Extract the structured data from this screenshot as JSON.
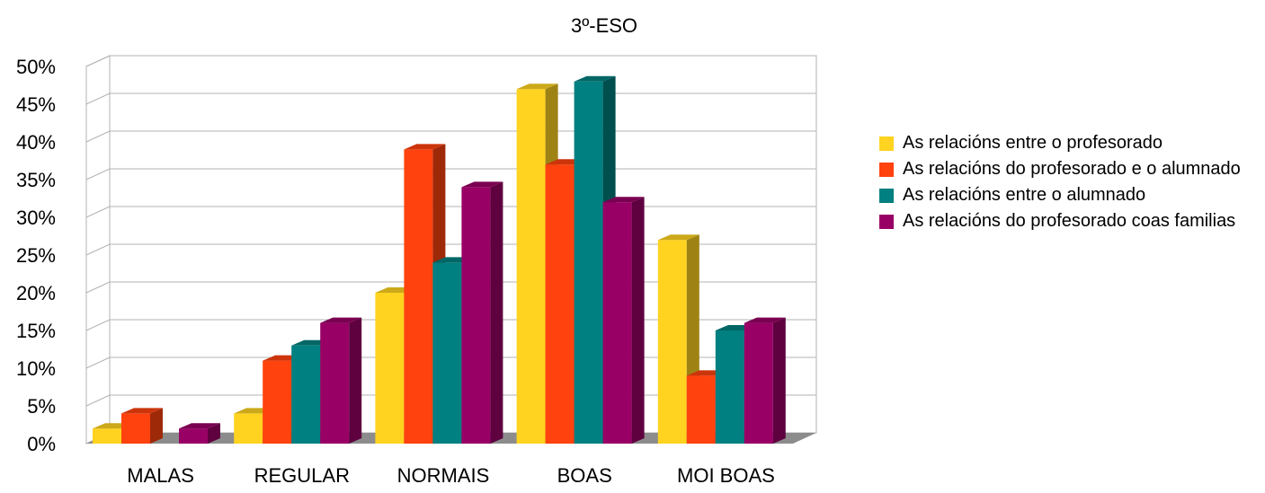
{
  "chart_data": {
    "type": "bar",
    "title": "3º-ESO",
    "xlabel": "",
    "ylabel": "",
    "categories": [
      "MALAS",
      "REGULAR",
      "NORMAIS",
      "BOAS",
      "MOI BOAS"
    ],
    "ylim": [
      0,
      50
    ],
    "y_ticks": [
      "0%",
      "5%",
      "10%",
      "15%",
      "20%",
      "25%",
      "30%",
      "35%",
      "40%",
      "45%",
      "50%"
    ],
    "grid": true,
    "three_d": true,
    "legend_position": "right",
    "series": [
      {
        "name": "As relacións entre o profesorado",
        "color": "#ffd320",
        "values": [
          2,
          4,
          20,
          47,
          27
        ]
      },
      {
        "name": "As relacións do profesorado e o alumnado",
        "color": "#ff420e",
        "values": [
          4,
          11,
          39,
          37,
          9
        ]
      },
      {
        "name": "As relacións entre o alumnado",
        "color": "#008080",
        "values": [
          0,
          13,
          24,
          48,
          15
        ]
      },
      {
        "name": "As relacións do profesorado coas familias",
        "color": "#990066",
        "values": [
          2,
          16,
          34,
          32,
          16
        ]
      }
    ]
  }
}
